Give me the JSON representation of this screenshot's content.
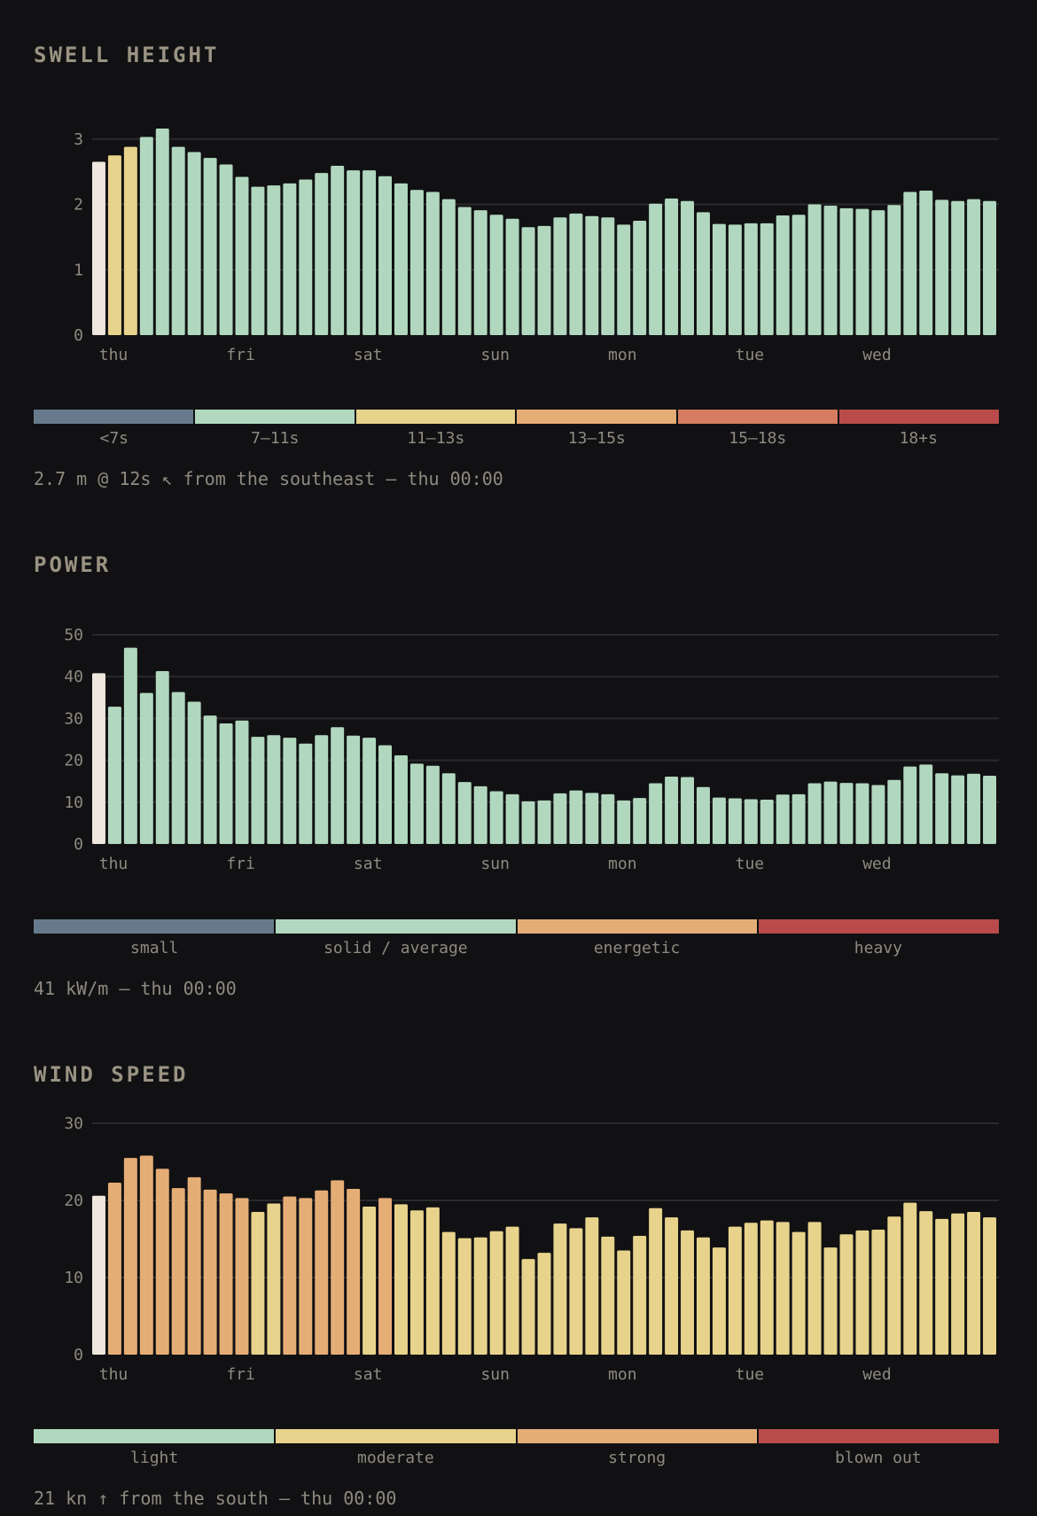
{
  "swell": {
    "title": "SWELL HEIGHT",
    "readout": "2.7 m @ 12s ↖ from the southeast — thu 00:00",
    "legend": [
      {
        "label": "<7s",
        "color": "#667a8c"
      },
      {
        "label": "7–11s",
        "color": "#b1d8bf"
      },
      {
        "label": "11–13s",
        "color": "#e8d38c"
      },
      {
        "label": "13–15s",
        "color": "#e5ad76"
      },
      {
        "label": "15–18s",
        "color": "#d67c60"
      },
      {
        "label": "18+s",
        "color": "#b94c4a"
      }
    ]
  },
  "power": {
    "title": "POWER",
    "readout": "41 kW/m — thu 00:00",
    "legend": [
      {
        "label": "small",
        "color": "#667a8c"
      },
      {
        "label": "solid / average",
        "color": "#b1d8bf"
      },
      {
        "label": "energetic",
        "color": "#e5ad76"
      },
      {
        "label": "heavy",
        "color": "#b94c4a"
      }
    ]
  },
  "wind": {
    "title": "WIND SPEED",
    "readout": "21 kn ↑ from the south — thu 00:00",
    "legend": [
      {
        "label": "light",
        "color": "#b1d8bf"
      },
      {
        "label": "moderate",
        "color": "#e8d38c"
      },
      {
        "label": "strong",
        "color": "#e5ad76"
      },
      {
        "label": "blown out",
        "color": "#b94c4a"
      }
    ]
  },
  "chart_data": [
    {
      "type": "bar",
      "x_labels": [
        "thu",
        "fri",
        "sat",
        "sun",
        "mon",
        "tue",
        "wed"
      ],
      "yticks": [
        0,
        1,
        2,
        3
      ],
      "ylim": [
        0,
        3.2
      ],
      "selected_index": 0,
      "selected_color": "#efe7dd",
      "values": [
        2.65,
        2.75,
        2.88,
        3.03,
        3.16,
        2.88,
        2.8,
        2.71,
        2.61,
        2.42,
        2.27,
        2.29,
        2.32,
        2.38,
        2.48,
        2.59,
        2.52,
        2.52,
        2.43,
        2.32,
        2.22,
        2.19,
        2.08,
        1.96,
        1.91,
        1.84,
        1.78,
        1.65,
        1.67,
        1.8,
        1.86,
        1.82,
        1.8,
        1.69,
        1.75,
        2.01,
        2.09,
        2.05,
        1.88,
        1.7,
        1.69,
        1.71,
        1.71,
        1.83,
        1.84,
        2.0,
        1.98,
        1.94,
        1.93,
        1.91,
        1.99,
        2.19,
        2.21,
        2.07,
        2.05,
        2.08,
        2.05
      ],
      "colors": [
        "#efe7dd",
        "#e8d38c",
        "#e8d38c",
        "#b1d8bf",
        "#b1d8bf",
        "#b1d8bf",
        "#b1d8bf",
        "#b1d8bf",
        "#b1d8bf",
        "#b1d8bf",
        "#b1d8bf",
        "#b1d8bf",
        "#b1d8bf",
        "#b1d8bf",
        "#b1d8bf",
        "#b1d8bf",
        "#b1d8bf",
        "#b1d8bf",
        "#b1d8bf",
        "#b1d8bf",
        "#b1d8bf",
        "#b1d8bf",
        "#b1d8bf",
        "#b1d8bf",
        "#b1d8bf",
        "#b1d8bf",
        "#b1d8bf",
        "#b1d8bf",
        "#b1d8bf",
        "#b1d8bf",
        "#b1d8bf",
        "#b1d8bf",
        "#b1d8bf",
        "#b1d8bf",
        "#b1d8bf",
        "#b1d8bf",
        "#b1d8bf",
        "#b1d8bf",
        "#b1d8bf",
        "#b1d8bf",
        "#b1d8bf",
        "#b1d8bf",
        "#b1d8bf",
        "#b1d8bf",
        "#b1d8bf",
        "#b1d8bf",
        "#b1d8bf",
        "#b1d8bf",
        "#b1d8bf",
        "#b1d8bf",
        "#b1d8bf",
        "#b1d8bf",
        "#b1d8bf",
        "#b1d8bf",
        "#b1d8bf",
        "#b1d8bf",
        "#b1d8bf"
      ]
    },
    {
      "type": "bar",
      "x_labels": [
        "thu",
        "fri",
        "sat",
        "sun",
        "mon",
        "tue",
        "wed"
      ],
      "yticks": [
        0,
        10,
        20,
        30,
        40,
        50
      ],
      "ylim": [
        0,
        50
      ],
      "selected_index": 0,
      "selected_color": "#efe7dd",
      "values": [
        40.8,
        32.8,
        46.9,
        36.1,
        41.3,
        36.3,
        34.0,
        30.7,
        28.8,
        29.5,
        25.6,
        26.0,
        25.4,
        24.0,
        26.0,
        27.9,
        25.9,
        25.4,
        23.6,
        21.2,
        19.2,
        18.7,
        16.9,
        14.8,
        13.8,
        12.6,
        11.9,
        10.2,
        10.4,
        12.1,
        12.8,
        12.2,
        11.9,
        10.4,
        11.0,
        14.5,
        16.1,
        16.0,
        13.6,
        11.1,
        10.9,
        10.7,
        10.6,
        11.8,
        11.9,
        14.5,
        14.9,
        14.6,
        14.5,
        14.1,
        15.3,
        18.5,
        19.0,
        16.9,
        16.4,
        16.8,
        16.3
      ],
      "colors": [
        "#efe7dd",
        "#b1d8bf",
        "#b1d8bf",
        "#b1d8bf",
        "#b1d8bf",
        "#b1d8bf",
        "#b1d8bf",
        "#b1d8bf",
        "#b1d8bf",
        "#b1d8bf",
        "#b1d8bf",
        "#b1d8bf",
        "#b1d8bf",
        "#b1d8bf",
        "#b1d8bf",
        "#b1d8bf",
        "#b1d8bf",
        "#b1d8bf",
        "#b1d8bf",
        "#b1d8bf",
        "#b1d8bf",
        "#b1d8bf",
        "#b1d8bf",
        "#b1d8bf",
        "#b1d8bf",
        "#b1d8bf",
        "#b1d8bf",
        "#b1d8bf",
        "#b1d8bf",
        "#b1d8bf",
        "#b1d8bf",
        "#b1d8bf",
        "#b1d8bf",
        "#b1d8bf",
        "#b1d8bf",
        "#b1d8bf",
        "#b1d8bf",
        "#b1d8bf",
        "#b1d8bf",
        "#b1d8bf",
        "#b1d8bf",
        "#b1d8bf",
        "#b1d8bf",
        "#b1d8bf",
        "#b1d8bf",
        "#b1d8bf",
        "#b1d8bf",
        "#b1d8bf",
        "#b1d8bf",
        "#b1d8bf",
        "#b1d8bf",
        "#b1d8bf",
        "#b1d8bf",
        "#b1d8bf",
        "#b1d8bf",
        "#b1d8bf",
        "#b1d8bf"
      ]
    },
    {
      "type": "bar",
      "x_labels": [
        "thu",
        "fri",
        "sat",
        "sun",
        "mon",
        "tue",
        "wed"
      ],
      "yticks": [
        0,
        10,
        20,
        30
      ],
      "ylim": [
        0,
        30
      ],
      "selected_index": 0,
      "selected_color": "#efe7dd",
      "values": [
        20.6,
        22.3,
        25.5,
        25.8,
        24.1,
        21.6,
        23.0,
        21.4,
        20.9,
        20.3,
        18.5,
        19.6,
        20.5,
        20.3,
        21.3,
        22.6,
        21.5,
        19.2,
        20.3,
        19.5,
        18.7,
        19.1,
        15.9,
        15.1,
        15.2,
        16.0,
        16.6,
        12.4,
        13.2,
        17.0,
        16.4,
        17.8,
        15.3,
        13.5,
        15.4,
        19.0,
        17.8,
        16.1,
        15.2,
        13.9,
        16.6,
        17.1,
        17.4,
        17.2,
        15.9,
        17.2,
        13.9,
        15.6,
        16.1,
        16.2,
        17.9,
        19.7,
        18.6,
        17.6,
        18.3,
        18.5,
        17.8
      ],
      "colors": [
        "#efe7dd",
        "#e5ad76",
        "#e5ad76",
        "#e5ad76",
        "#e5ad76",
        "#e5ad76",
        "#e5ad76",
        "#e5ad76",
        "#e5ad76",
        "#e5ad76",
        "#e8d38c",
        "#e8d38c",
        "#e5ad76",
        "#e5ad76",
        "#e5ad76",
        "#e5ad76",
        "#e5ad76",
        "#e8d38c",
        "#e5ad76",
        "#e8d38c",
        "#e8d38c",
        "#e8d38c",
        "#e8d38c",
        "#e8d38c",
        "#e8d38c",
        "#e8d38c",
        "#e8d38c",
        "#e8d38c",
        "#e8d38c",
        "#e8d38c",
        "#e8d38c",
        "#e8d38c",
        "#e8d38c",
        "#e8d38c",
        "#e8d38c",
        "#e8d38c",
        "#e8d38c",
        "#e8d38c",
        "#e8d38c",
        "#e8d38c",
        "#e8d38c",
        "#e8d38c",
        "#e8d38c",
        "#e8d38c",
        "#e8d38c",
        "#e8d38c",
        "#e8d38c",
        "#e8d38c",
        "#e8d38c",
        "#e8d38c",
        "#e8d38c",
        "#e8d38c",
        "#e8d38c",
        "#e8d38c",
        "#e8d38c",
        "#e8d38c",
        "#e8d38c"
      ]
    }
  ]
}
